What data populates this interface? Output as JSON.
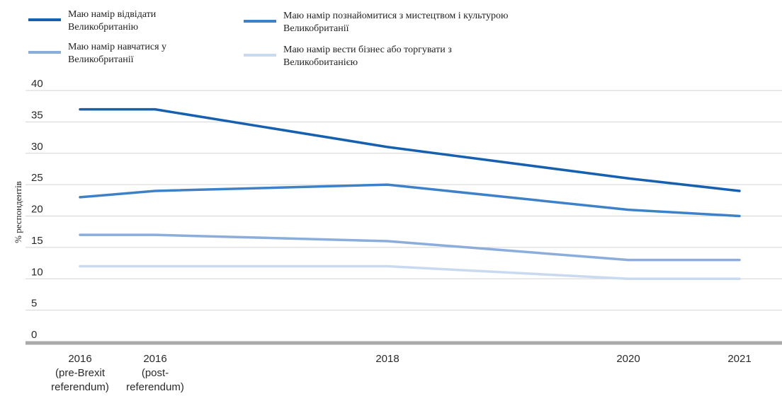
{
  "chart_data": {
    "type": "line",
    "title": "",
    "xlabel": "",
    "ylabel": "% респондентів",
    "ylim": [
      0,
      40
    ],
    "yticks": [
      0,
      5,
      10,
      15,
      20,
      25,
      30,
      35,
      40
    ],
    "grid": true,
    "legend_position": "top",
    "categories": [
      [
        "2016",
        "(pre-Brexit",
        "referendum)"
      ],
      [
        "2016",
        "(post-",
        "referendum)"
      ],
      [
        "2018"
      ],
      [
        "2020"
      ],
      [
        "2021"
      ]
    ],
    "x": [
      2016.0,
      2016.5,
      2018,
      2020,
      2021
    ],
    "series": [
      {
        "name": "Маю намір відвідати Великобританію",
        "color": "#1660b0",
        "values": [
          37,
          37,
          31,
          26,
          24
        ]
      },
      {
        "name": "Маю намір познайомитися з мистецтвом і культурою Великобританії",
        "color": "#3d82c9",
        "values": [
          23,
          24,
          25,
          21,
          20
        ]
      },
      {
        "name": "Маю намір навчатися у Великобританії",
        "color": "#8aaddb",
        "values": [
          17,
          17,
          16,
          13,
          13
        ]
      },
      {
        "name": "Маю намір вести бізнес або торгувати з Великобританією",
        "color": "#c9daf0",
        "values": [
          12,
          12,
          12,
          10,
          10
        ]
      }
    ]
  }
}
